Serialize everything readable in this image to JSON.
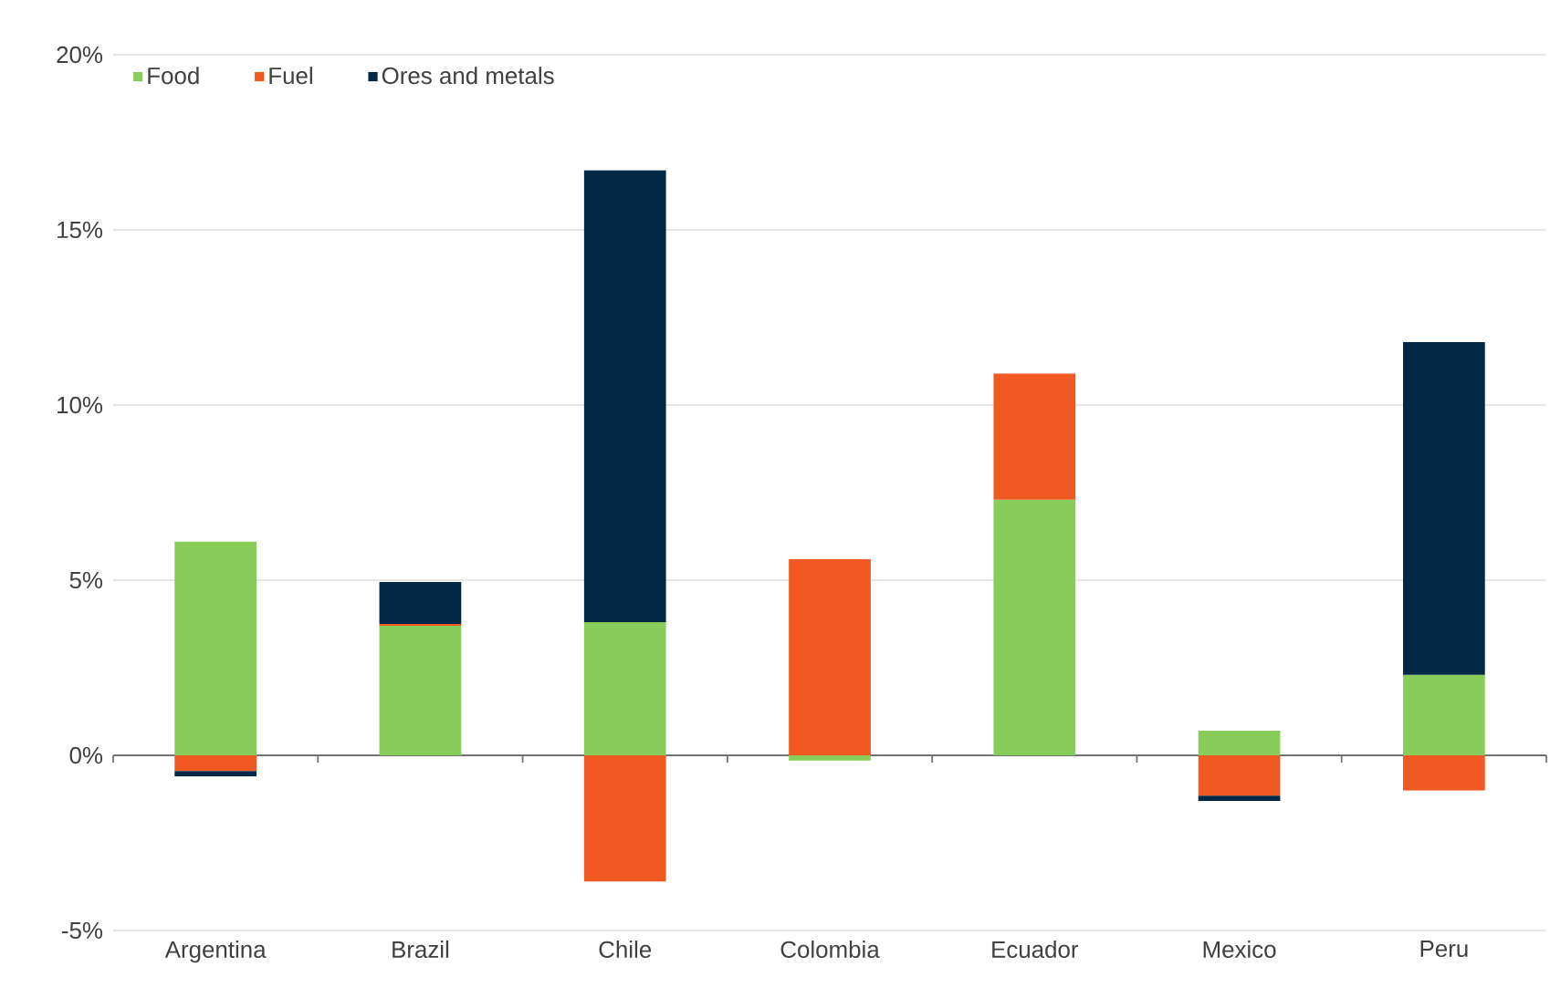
{
  "chart_data": {
    "type": "bar",
    "stacked": true,
    "categories": [
      "Argentina",
      "Brazil",
      "Chile",
      "Colombia",
      "Ecuador",
      "Mexico",
      "Peru"
    ],
    "series": [
      {
        "name": "Food",
        "color": "#88cc5a",
        "values": [
          6.1,
          3.7,
          3.8,
          -0.15,
          7.3,
          0.7,
          2.3
        ]
      },
      {
        "name": "Fuel",
        "color": "#f05a22",
        "values": [
          -0.45,
          0.05,
          -3.6,
          5.6,
          3.6,
          -1.15,
          -1.0
        ]
      },
      {
        "name": "Ores and metals",
        "color": "#022846",
        "values": [
          -0.15,
          1.2,
          12.9,
          0,
          0,
          -0.15,
          9.5
        ]
      }
    ],
    "ylim": [
      -5,
      20
    ],
    "yticks": [
      {
        "value": -5,
        "label": "-5%"
      },
      {
        "value": 0,
        "label": "0%"
      },
      {
        "value": 5,
        "label": "5%"
      },
      {
        "value": 10,
        "label": "10%"
      },
      {
        "value": 15,
        "label": "15%"
      },
      {
        "value": 20,
        "label": "20%"
      }
    ],
    "grid": "y",
    "legend": "top left"
  }
}
